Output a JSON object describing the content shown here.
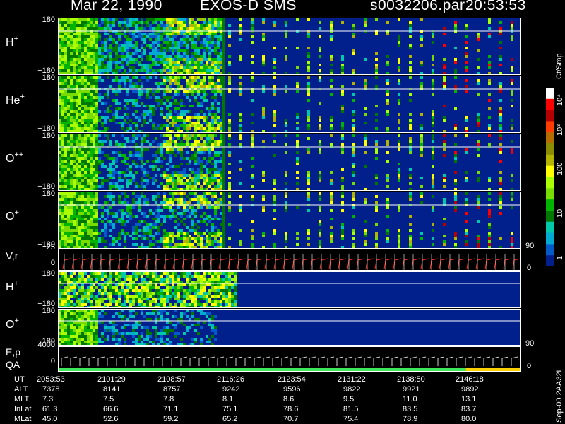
{
  "header": {
    "date": "Mar 22, 1990",
    "instrument": "EXOS-D SMS",
    "file": "s0032206.par",
    "time": "20:53:53"
  },
  "panels": [
    {
      "id": "hplus",
      "label": "H",
      "sup": "+",
      "ytop": "180",
      "ybot": "−180"
    },
    {
      "id": "heplus",
      "label": "He",
      "sup": "+",
      "ytop": "180",
      "ybot": "−180"
    },
    {
      "id": "oplusplus",
      "label": "O",
      "sup": "++",
      "ytop": "180",
      "ybot": "−180"
    },
    {
      "id": "oplus",
      "label": "O",
      "sup": "+",
      "ytop": "180",
      "ybot": "−180"
    }
  ],
  "vr_panel": {
    "label": "V,r",
    "ytop": "25",
    "ybot": "0",
    "rtop": "90",
    "rbot": "0"
  },
  "hplus2": {
    "label": "H",
    "sup": "+",
    "ytop": "180",
    "ybot": "−180"
  },
  "oplus2": {
    "label": "O",
    "sup": "+",
    "ytop": "180",
    "ybot": "−180",
    "rtop": "90"
  },
  "ep_panel": {
    "label1": "E,p",
    "label2": "QA",
    "ytop": "4000",
    "ybot": "0",
    "rbot": "0"
  },
  "colorbar": {
    "unit": "Ct/Smp",
    "ticks": [
      "10⁴",
      "10³",
      "100",
      "10",
      "1"
    ],
    "colors": [
      "#ffffff",
      "#ff0000",
      "#b40000",
      "#ff3c00",
      "#b46e00",
      "#8c8c00",
      "#b4b400",
      "#ffff00",
      "#aaff00",
      "#78dc00",
      "#00b400",
      "#007800",
      "#00c8aa",
      "#00aad2",
      "#005ac8",
      "#01208c"
    ]
  },
  "table": {
    "rows": [
      {
        "label": "UT",
        "values": [
          "2053:53",
          "2101:29",
          "2108:57",
          "2116:26",
          "2123:54",
          "2131:22",
          "2138:50",
          "2146:18"
        ]
      },
      {
        "label": "ALT",
        "values": [
          "7378",
          "8141",
          "8757",
          "9242",
          "9596",
          "9822",
          "9921",
          "9892"
        ]
      },
      {
        "label": "MLT",
        "values": [
          "7.3",
          "7.5",
          "7.8",
          "8.1",
          "8.6",
          "9.5",
          "11.0",
          "13.1"
        ]
      },
      {
        "label": "InLat",
        "values": [
          "61.3",
          "66.6",
          "71.1",
          "75.1",
          "78.6",
          "81.5",
          "83.5",
          "83.7"
        ]
      },
      {
        "label": "MLat",
        "values": [
          "45.0",
          "52.6",
          "59.2",
          "65.2",
          "70.7",
          "75.4",
          "78.9",
          "80.0"
        ]
      }
    ]
  },
  "footer_note": "Sep-00 2AA32L"
}
